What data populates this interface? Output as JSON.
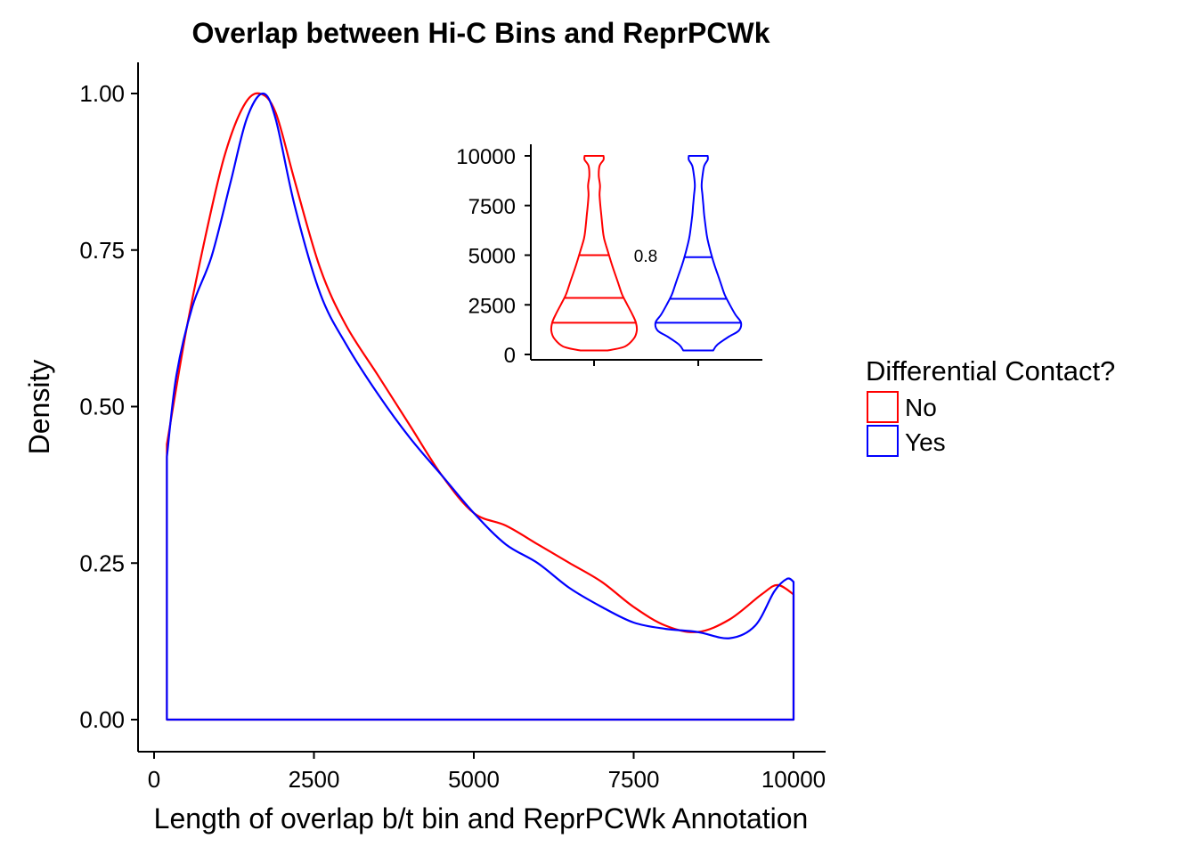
{
  "chart_data": {
    "type": "area",
    "title": "Overlap between Hi-C Bins and ReprPCWk",
    "xlabel": "Length of overlap b/t bin and ReprPCWk Annotation",
    "ylabel": "Density",
    "xlim": [
      0,
      10000
    ],
    "ylim": [
      0,
      1
    ],
    "xticks": [
      0,
      2500,
      5000,
      7500,
      10000
    ],
    "yticks": [
      0,
      0.25,
      0.5,
      0.75,
      1
    ],
    "x_tick_labels": [
      "0",
      "2500",
      "5000",
      "7500",
      "10000"
    ],
    "y_tick_labels": [
      "0.00",
      "0.25",
      "0.50",
      "0.75",
      "1.00"
    ],
    "grid": false,
    "legend": {
      "title": "Differential Contact?",
      "position": "right",
      "entries": [
        "No",
        "Yes"
      ]
    },
    "series": [
      {
        "name": "No",
        "color": "#ff0000",
        "x": [
          200,
          500,
          800,
          1100,
          1400,
          1650,
          1900,
          2200,
          2600,
          3000,
          3500,
          4000,
          4500,
          5000,
          5500,
          6000,
          6500,
          7000,
          7500,
          8000,
          8500,
          9000,
          9500,
          9750,
          10000
        ],
        "y": [
          0.44,
          0.62,
          0.77,
          0.9,
          0.98,
          1.0,
          0.97,
          0.86,
          0.72,
          0.63,
          0.55,
          0.47,
          0.39,
          0.33,
          0.31,
          0.28,
          0.25,
          0.22,
          0.18,
          0.15,
          0.14,
          0.16,
          0.2,
          0.215,
          0.2
        ]
      },
      {
        "name": "Yes",
        "color": "#0000ff",
        "x": [
          200,
          350,
          600,
          900,
          1200,
          1450,
          1700,
          1900,
          2200,
          2600,
          3000,
          3500,
          4000,
          4500,
          5000,
          5500,
          6000,
          6500,
          7000,
          7500,
          8000,
          8500,
          9000,
          9400,
          9700,
          9900,
          10000
        ],
        "y": [
          0.42,
          0.55,
          0.66,
          0.74,
          0.86,
          0.96,
          1.0,
          0.96,
          0.82,
          0.68,
          0.6,
          0.52,
          0.45,
          0.39,
          0.33,
          0.28,
          0.25,
          0.21,
          0.18,
          0.155,
          0.145,
          0.14,
          0.13,
          0.15,
          0.205,
          0.225,
          0.22
        ]
      }
    ],
    "inset": {
      "type": "violin",
      "ylim": [
        0,
        10000
      ],
      "yticks": [
        0,
        2500,
        5000,
        7500,
        10000
      ],
      "y_tick_labels": [
        "0",
        "2500",
        "5000",
        "7500",
        "10000"
      ],
      "annotation": "0.8",
      "groups": [
        {
          "name": "No",
          "color": "#ff0000",
          "quantiles": [
            1600,
            2850,
            5000
          ],
          "y": [
            200,
            400,
            800,
            1200,
            1600,
            2000,
            2500,
            3000,
            3500,
            4000,
            4500,
            5000,
            5500,
            6000,
            7000,
            8000,
            8500,
            9000,
            9500,
            9800,
            10000
          ],
          "width": [
            0.32,
            0.72,
            0.93,
            1.0,
            0.98,
            0.9,
            0.78,
            0.66,
            0.58,
            0.5,
            0.42,
            0.35,
            0.28,
            0.22,
            0.17,
            0.13,
            0.14,
            0.11,
            0.13,
            0.22,
            0.22
          ]
        },
        {
          "name": "Yes",
          "color": "#0000ff",
          "quantiles": [
            1600,
            2800,
            4900
          ],
          "y": [
            200,
            500,
            900,
            1200,
            1600,
            2000,
            2500,
            3000,
            3500,
            4000,
            4500,
            5000,
            5500,
            6000,
            7000,
            7500,
            8000,
            8500,
            9000,
            9500,
            9800,
            10000
          ],
          "width": [
            0.35,
            0.45,
            0.72,
            0.95,
            1.0,
            0.87,
            0.74,
            0.62,
            0.54,
            0.46,
            0.38,
            0.31,
            0.25,
            0.2,
            0.14,
            0.12,
            0.1,
            0.08,
            0.1,
            0.14,
            0.22,
            0.22
          ]
        }
      ]
    }
  }
}
